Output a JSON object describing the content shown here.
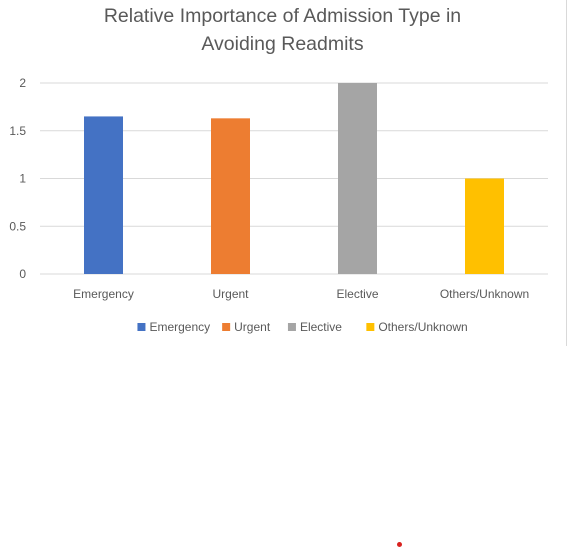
{
  "colors": {
    "gridline": "#d9d9d9",
    "axis": "#d9d9d9",
    "text": "#595959",
    "stray_dot": "#d9221f"
  },
  "chart_data": {
    "type": "bar",
    "title_lines": [
      "Relative Importance of Admission Type in",
      "Avoiding Readmits"
    ],
    "categories": [
      "Emergency",
      "Urgent",
      "Elective",
      "Others/Unknown"
    ],
    "values": [
      1.65,
      1.63,
      2.0,
      1.0
    ],
    "colors": [
      "#4472c4",
      "#ed7d31",
      "#a5a5a5",
      "#ffc000"
    ],
    "ylim": [
      0,
      2
    ],
    "yticks": [
      "0",
      "0.5",
      "1",
      "1.5",
      "2"
    ],
    "grid": true,
    "legend": {
      "position": "bottom",
      "entries": [
        "Emergency",
        "Urgent",
        "Elective",
        "Others/Unknown"
      ]
    }
  }
}
